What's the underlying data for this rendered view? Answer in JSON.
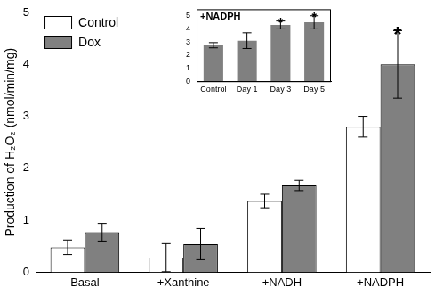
{
  "chart_data": [
    {
      "type": "bar",
      "categories": [
        "Basal",
        "+Xanthine",
        "+NADH",
        "+NADPH"
      ],
      "y_label": "Production of H₂O₂ (nmol/min/mg)",
      "series": [
        {
          "name": "Control",
          "color": "#ffffff",
          "values": [
            0.48,
            0.28,
            1.37,
            2.8
          ],
          "errors": [
            0.14,
            0.27,
            0.13,
            0.2
          ]
        },
        {
          "name": "Dox",
          "color": "#808080",
          "values": [
            0.77,
            0.54,
            1.67,
            4.0
          ],
          "errors": [
            0.17,
            0.3,
            0.1,
            0.65
          ]
        }
      ],
      "ylim": [
        0,
        5
      ],
      "yticks": [
        0,
        1,
        2,
        3,
        4,
        5
      ],
      "legend": "top left",
      "grid": false,
      "annotations": [
        {
          "text": "*",
          "category": "+NADPH",
          "series": "Dox"
        }
      ]
    },
    {
      "type": "bar",
      "title": "+NADPH",
      "categories": [
        "Control",
        "Day 1",
        "Day 3",
        "Day 5"
      ],
      "values": [
        2.75,
        3.1,
        4.3,
        4.5
      ],
      "errors": [
        0.2,
        0.6,
        0.3,
        0.5
      ],
      "color": "#808080",
      "ylim": [
        0,
        5.5
      ],
      "yticks": [
        0,
        1,
        2,
        3,
        4,
        5
      ],
      "grid": false,
      "annotations": [
        {
          "text": "*",
          "category": "Day 3"
        },
        {
          "text": "*",
          "category": "Day 5"
        }
      ]
    }
  ]
}
